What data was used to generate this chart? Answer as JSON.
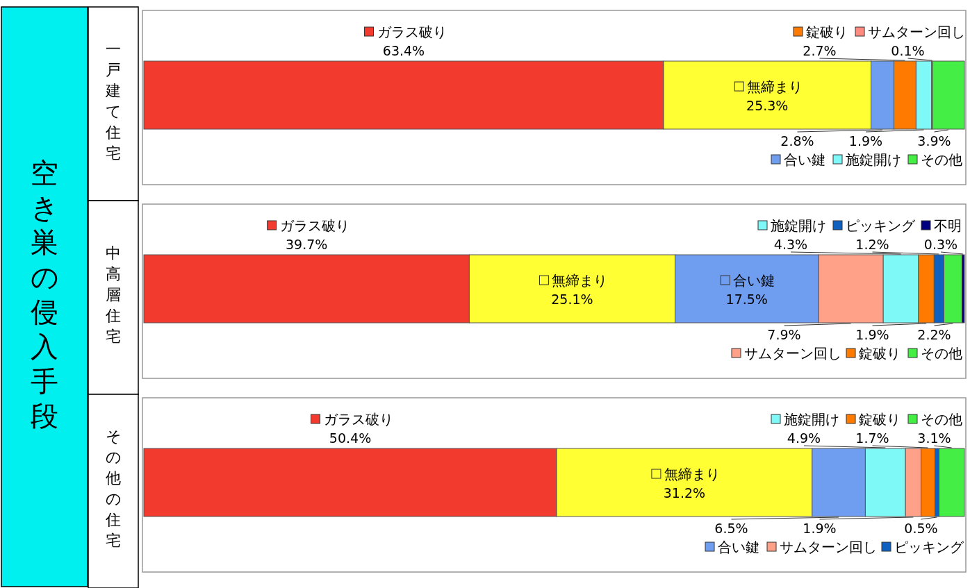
{
  "chart_data": [
    {
      "type": "bar",
      "orientation": "horizontal",
      "stacked": true,
      "title": "空き巣の侵入手段",
      "legend": "right",
      "categories": [
        "一戸建て住宅"
      ],
      "series": [
        {
          "name": "ガラス破り",
          "color": "#f23a2e",
          "values": [
            63.4
          ],
          "value_labels": [
            "63.4%"
          ]
        },
        {
          "name": "無締まり",
          "color": "#ffff33",
          "values": [
            25.3
          ],
          "value_labels": [
            "25.3%"
          ]
        },
        {
          "name": "合い鍵",
          "color": "#6f9ef0",
          "values": [
            2.8
          ],
          "value_labels": [
            "2.8%"
          ]
        },
        {
          "name": "錠破り",
          "color": "#ff7a00",
          "values": [
            2.7
          ],
          "value_labels": [
            "2.7%"
          ]
        },
        {
          "name": "施錠開け",
          "color": "#7ff8f8",
          "values": [
            1.9
          ],
          "value_labels": [
            "1.9%"
          ]
        },
        {
          "name": "サムターン回し",
          "color": "#ff8a80",
          "values": [
            0.1
          ],
          "value_labels": [
            "0.1%"
          ]
        },
        {
          "name": "その他",
          "color": "#44ee44",
          "values": [
            3.9
          ],
          "value_labels": [
            "3.9%"
          ]
        }
      ]
    },
    {
      "type": "bar",
      "orientation": "horizontal",
      "stacked": true,
      "legend": "right",
      "categories": [
        "中高層住宅"
      ],
      "series": [
        {
          "name": "ガラス破り",
          "color": "#f23a2e",
          "values": [
            39.7
          ],
          "value_labels": [
            "39.7%"
          ]
        },
        {
          "name": "無締まり",
          "color": "#ffff33",
          "values": [
            25.1
          ],
          "value_labels": [
            "25.1%"
          ]
        },
        {
          "name": "合い鍵",
          "color": "#6f9ef0",
          "values": [
            17.5
          ],
          "value_labels": [
            "17.5%"
          ]
        },
        {
          "name": "サムターン回し",
          "color": "#ffa088",
          "values": [
            7.9
          ],
          "value_labels": [
            "7.9%"
          ]
        },
        {
          "name": "施錠開け",
          "color": "#7ff8f8",
          "values": [
            4.3
          ],
          "value_labels": [
            "4.3%"
          ]
        },
        {
          "name": "錠破り",
          "color": "#ff7a00",
          "values": [
            1.9
          ],
          "value_labels": [
            "1.9%"
          ]
        },
        {
          "name": "ピッキング",
          "color": "#1060c0",
          "values": [
            1.2
          ],
          "value_labels": [
            "1.2%"
          ]
        },
        {
          "name": "その他",
          "color": "#44ee44",
          "values": [
            2.2
          ],
          "value_labels": [
            "2.2%"
          ]
        },
        {
          "name": "不明",
          "color": "#000080",
          "values": [
            0.3
          ],
          "value_labels": [
            "0.3%"
          ]
        }
      ]
    },
    {
      "type": "bar",
      "orientation": "horizontal",
      "stacked": true,
      "legend": "right",
      "categories": [
        "その他の住宅"
      ],
      "series": [
        {
          "name": "ガラス破り",
          "color": "#f23a2e",
          "values": [
            50.4
          ],
          "value_labels": [
            "50.4%"
          ]
        },
        {
          "name": "無締まり",
          "color": "#ffff33",
          "values": [
            31.2
          ],
          "value_labels": [
            "31.2%"
          ]
        },
        {
          "name": "合い鍵",
          "color": "#6f9ef0",
          "values": [
            6.5
          ],
          "value_labels": [
            "6.5%"
          ]
        },
        {
          "name": "施錠開け",
          "color": "#7ff8f8",
          "values": [
            4.9
          ],
          "value_labels": [
            "4.9%"
          ]
        },
        {
          "name": "サムターン回し",
          "color": "#ffa088",
          "values": [
            1.9
          ],
          "value_labels": [
            "1.9%"
          ]
        },
        {
          "name": "錠破り",
          "color": "#ff7a00",
          "values": [
            1.7
          ],
          "value_labels": [
            "1.7%"
          ]
        },
        {
          "name": "ピッキング",
          "color": "#1060c0",
          "values": [
            0.5
          ],
          "value_labels": [
            "0.5%"
          ]
        },
        {
          "name": "その他",
          "color": "#44ee44",
          "values": [
            3.1
          ],
          "value_labels": [
            "3.1%"
          ]
        }
      ]
    }
  ]
}
